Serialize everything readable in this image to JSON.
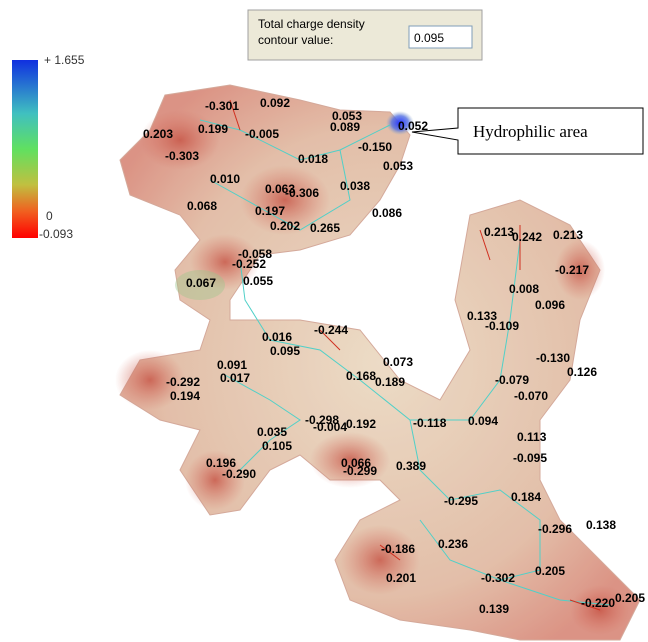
{
  "dialog": {
    "label_lines": [
      "Total charge density",
      "contour value:"
    ],
    "value": "0.095"
  },
  "legend": {
    "max": "+ 1.655",
    "zero": "0",
    "min": "-0.093"
  },
  "callout": "Hydrophilic area",
  "atom_charges": [
    "-0.301",
    "0.092",
    "0.053",
    "0.089",
    "0.052",
    "0.203",
    "0.199",
    "-0.005",
    "-0.150",
    "-0.303",
    "0.018",
    "0.053",
    "0.010",
    "0.063",
    "-0.306",
    "0.038",
    "0.068",
    "0.197",
    "0.086",
    "0.202",
    "0.265",
    "-0.058",
    "-0.252",
    "0.213",
    "0.242",
    "0.213",
    "-0.217",
    "0.067",
    "0.055",
    "0.008",
    "0.096",
    "0.133",
    "-0.109",
    "-0.244",
    "0.016",
    "0.095",
    "0.073",
    "-0.130",
    "0.126",
    "0.091",
    "0.017",
    "0.168",
    "0.189",
    "-0.079",
    "-0.292",
    "0.194",
    "-0.070",
    "-0.298",
    "0.192",
    "-0.004",
    "-0.118",
    "0.094",
    "0.035",
    "0.113",
    "0.105",
    "-0.095",
    "0.196",
    "0.066",
    "-0.299",
    "0.389",
    "-0.290",
    "0.184",
    "-0.295",
    "-0.296",
    "0.138",
    "-0.186",
    "0.236",
    "0.201",
    "-0.302",
    "0.205",
    "-0.220",
    "0.205",
    "0.139"
  ]
}
